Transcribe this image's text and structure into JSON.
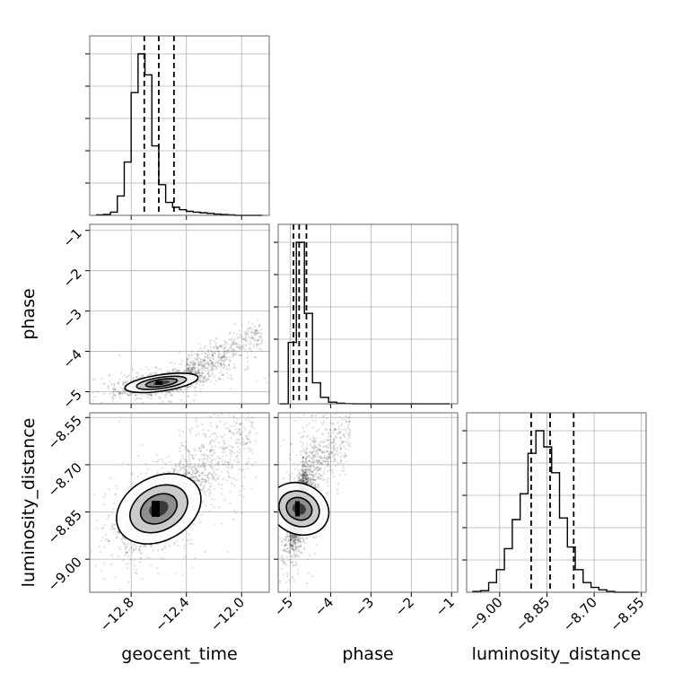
{
  "chart_data": {
    "type": "corner",
    "parameters": [
      "geocent_time",
      "phase",
      "luminosity_distance"
    ],
    "axis_labels": {
      "geocent_time": "geocent_time",
      "phase": "phase",
      "luminosity_distance": "luminosity_distance"
    },
    "ranges": {
      "geocent_time": [
        -13.1,
        -11.8
      ],
      "phase": [
        -5.3,
        -0.85
      ],
      "luminosity_distance": [
        -9.105,
        -8.535
      ]
    },
    "ticks": {
      "geocent_time": [
        -12.8,
        -12.4,
        -12.0
      ],
      "geocent_time_labels": [
        "−12.8",
        "−12.4",
        "−12.0"
      ],
      "phase": [
        -5,
        -4,
        -3,
        -2,
        -1
      ],
      "phase_labels": [
        "−5",
        "−4",
        "−3",
        "−2",
        "−1"
      ],
      "luminosity_distance": [
        -9.0,
        -8.85,
        -8.7,
        -8.55
      ],
      "luminosity_distance_labels": [
        "−9.00",
        "−8.85",
        "−8.70",
        "−8.55"
      ]
    },
    "grid": true,
    "histograms": {
      "geocent_time": {
        "bin_edges": [
          -13.05,
          -13.0,
          -12.95,
          -12.9,
          -12.85,
          -12.8,
          -12.75,
          -12.7,
          -12.65,
          -12.6,
          -12.55,
          -12.5,
          -12.45,
          -12.4,
          -12.35,
          -12.3,
          -12.25,
          -12.2,
          -12.15,
          -12.1,
          -12.05,
          -12.0,
          -11.95,
          -11.9,
          -11.85
        ],
        "counts": [
          0.3,
          0.6,
          2,
          12,
          33,
          76,
          100,
          87,
          43,
          19,
          8,
          5,
          3.5,
          2.5,
          2,
          1.6,
          1.2,
          0.8,
          0.5,
          0.3,
          0,
          0,
          0,
          0
        ],
        "quantiles": [
          -12.705,
          -12.6,
          -12.49
        ]
      },
      "phase": {
        "bin_edges": [
          -5.25,
          -5.05,
          -4.85,
          -4.65,
          -4.45,
          -4.25,
          -4.05,
          -3.85,
          -3.65,
          -3.45,
          -3.25,
          -3.05,
          -2.85,
          -2.65,
          -2.45,
          -2.25,
          -2.05,
          -1.85,
          -1.65,
          -1.45,
          -1.25,
          -1.05
        ],
        "counts": [
          0,
          38,
          100,
          56,
          13,
          4,
          1,
          0.4,
          0.1,
          0,
          0,
          0,
          0,
          0,
          0,
          0,
          0,
          0,
          0,
          0,
          0
        ],
        "quantiles": [
          -4.92,
          -4.78,
          -4.6
        ]
      },
      "luminosity_distance": {
        "bin_edges": [
          -9.085,
          -9.06,
          -9.035,
          -9.01,
          -8.985,
          -8.96,
          -8.935,
          -8.91,
          -8.885,
          -8.86,
          -8.835,
          -8.81,
          -8.785,
          -8.76,
          -8.735,
          -8.71,
          -8.685,
          -8.66,
          -8.635,
          -8.61,
          -8.585,
          -8.56
        ],
        "counts": [
          0.5,
          1,
          6,
          14,
          27,
          45,
          61,
          86,
          100,
          90,
          74,
          46,
          28,
          14,
          6,
          3,
          1.5,
          0.5,
          0,
          0,
          0
        ],
        "quantiles": [
          -8.9,
          -8.84,
          -8.765
        ]
      }
    },
    "scatter_pairs": [
      {
        "x": "geocent_time",
        "y": "phase",
        "mean": [
          -12.58,
          -4.78
        ],
        "sd": [
          0.12,
          0.11
        ],
        "corr": 0.55,
        "tail": {
          "x_range": [
            -12.4,
            -11.85
          ],
          "y_start": -4.55,
          "y_slope": 1.75,
          "y_noise": 0.22
        }
      },
      {
        "x": "geocent_time",
        "y": "luminosity_distance",
        "mean": [
          -12.6,
          -8.84
        ],
        "sd": [
          0.13,
          0.055
        ],
        "corr": 0.55,
        "tail": {
          "x_range": [
            -12.45,
            -11.9
          ],
          "y_start": -8.76,
          "y_slope": 0.3,
          "y_noise": 0.06
        }
      },
      {
        "x": "phase",
        "y": "luminosity_distance",
        "mean": [
          -4.78,
          -8.84
        ],
        "sd": [
          0.12,
          0.055
        ],
        "corr": 0.6,
        "tail": {
          "x_range": [
            -4.7,
            -3.5
          ],
          "y_start": -8.74,
          "y_slope": 0.12,
          "y_noise": 0.06
        }
      }
    ]
  }
}
